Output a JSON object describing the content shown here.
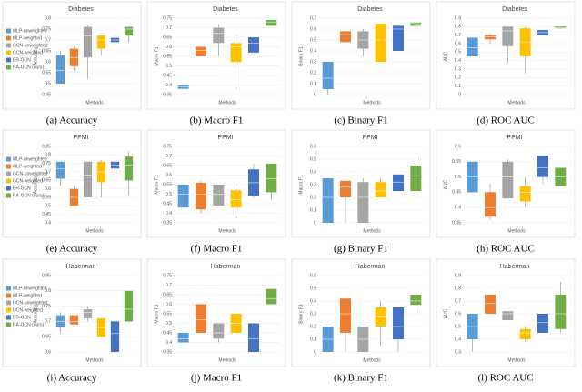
{
  "chart_data": [
    {
      "type": "box",
      "title": "Diabetes",
      "caption": "(a) Accuracy",
      "x_label": "Methods",
      "y_label": "Accuracy",
      "ylim": [
        0.45,
        0.8
      ],
      "yticks": [
        0.45,
        0.5,
        0.55,
        0.6,
        0.65,
        0.7,
        0.75,
        0.8
      ],
      "legend": true,
      "series": [
        {
          "name": "MLP-unweighted",
          "color": "#5b9bd5",
          "values": [
            0.5,
            0.5,
            0.56,
            0.63,
            0.65
          ]
        },
        {
          "name": "MLP-weighted",
          "color": "#ed7d31",
          "values": [
            0.56,
            0.58,
            0.62,
            0.66,
            0.67
          ]
        },
        {
          "name": "GCN-unweighted",
          "color": "#a5a5a5",
          "values": [
            0.52,
            0.62,
            0.72,
            0.76,
            0.77
          ]
        },
        {
          "name": "GCN-weighted",
          "color": "#ffc000",
          "values": [
            0.63,
            0.66,
            0.7,
            0.72,
            0.72
          ]
        },
        {
          "name": "ER-GCN",
          "color": "#4472c4",
          "values": [
            0.68,
            0.69,
            0.7,
            0.71,
            0.72
          ]
        },
        {
          "name": "RA-GCN (ours)",
          "color": "#70ad47",
          "values": [
            0.69,
            0.72,
            0.75,
            0.76,
            0.76
          ]
        }
      ]
    },
    {
      "type": "box",
      "title": "Diabetes",
      "caption": "(b) Macro F1",
      "x_label": "Methods",
      "y_label": "Macro F1",
      "ylim": [
        0.35,
        0.75
      ],
      "yticks": [
        0.35,
        0.4,
        0.45,
        0.5,
        0.55,
        0.6,
        0.65,
        0.7,
        0.75
      ],
      "legend": false,
      "series": [
        {
          "color": "#5b9bd5",
          "values": [
            0.38,
            0.38,
            0.39,
            0.4,
            0.4
          ]
        },
        {
          "color": "#ed7d31",
          "values": [
            0.55,
            0.55,
            0.58,
            0.6,
            0.6
          ]
        },
        {
          "color": "#a5a5a5",
          "values": [
            0.55,
            0.62,
            0.67,
            0.7,
            0.72
          ]
        },
        {
          "color": "#ffc000",
          "values": [
            0.38,
            0.52,
            0.6,
            0.62,
            0.66
          ]
        },
        {
          "color": "#4472c4",
          "values": [
            0.57,
            0.57,
            0.62,
            0.65,
            0.65
          ]
        },
        {
          "color": "#70ad47",
          "values": [
            0.71,
            0.71,
            0.73,
            0.74,
            0.74
          ]
        }
      ]
    },
    {
      "type": "box",
      "title": "Diabetes",
      "caption": "(c) Binary F1",
      "x_label": "Methods",
      "y_label": "Binary F1",
      "ylim": [
        0,
        0.7
      ],
      "yticks": [
        0,
        0.1,
        0.2,
        0.3,
        0.4,
        0.5,
        0.6,
        0.7
      ],
      "legend": false,
      "series": [
        {
          "color": "#5b9bd5",
          "values": [
            0,
            0.05,
            0.15,
            0.3,
            0.3
          ]
        },
        {
          "color": "#ed7d31",
          "values": [
            0.48,
            0.48,
            0.55,
            0.58,
            0.58
          ]
        },
        {
          "color": "#a5a5a5",
          "values": [
            0.35,
            0.42,
            0.5,
            0.58,
            0.6
          ]
        },
        {
          "color": "#ffc000",
          "values": [
            0.3,
            0.3,
            0.5,
            0.65,
            0.65
          ]
        },
        {
          "color": "#4472c4",
          "values": [
            0.4,
            0.4,
            0.6,
            0.63,
            0.63
          ]
        },
        {
          "color": "#70ad47",
          "values": [
            0.63,
            0.63,
            0.65,
            0.66,
            0.66
          ]
        }
      ]
    },
    {
      "type": "box",
      "title": "Diabetes",
      "caption": "(d) ROC AUC",
      "x_label": "Methods",
      "y_label": "AUC",
      "ylim": [
        0,
        0.9
      ],
      "yticks": [
        0,
        0.1,
        0.2,
        0.3,
        0.4,
        0.5,
        0.6,
        0.7,
        0.8,
        0.9
      ],
      "legend": false,
      "series": [
        {
          "color": "#5b9bd5",
          "values": [
            0.45,
            0.45,
            0.55,
            0.67,
            0.67
          ]
        },
        {
          "color": "#ed7d31",
          "values": [
            0.6,
            0.65,
            0.68,
            0.7,
            0.72
          ]
        },
        {
          "color": "#a5a5a5",
          "values": [
            0.37,
            0.57,
            0.75,
            0.8,
            0.8
          ]
        },
        {
          "color": "#ffc000",
          "values": [
            0.25,
            0.45,
            0.62,
            0.78,
            0.8
          ]
        },
        {
          "color": "#4472c4",
          "values": [
            0.7,
            0.7,
            0.73,
            0.76,
            0.76
          ]
        },
        {
          "color": "#70ad47",
          "values": [
            0.78,
            0.78,
            0.79,
            0.8,
            0.8
          ]
        }
      ]
    },
    {
      "type": "box",
      "title": "PPMI",
      "caption": "(e) Accuracy",
      "x_label": "Methods",
      "y_label": "Accuracy",
      "ylim": [
        0.4,
        0.85
      ],
      "yticks": [
        0.4,
        0.45,
        0.5,
        0.55,
        0.6,
        0.65,
        0.7,
        0.75,
        0.8,
        0.85
      ],
      "legend": true,
      "series": [
        {
          "name": "MLP-unweighted",
          "color": "#5b9bd5",
          "values": [
            0.62,
            0.66,
            0.72,
            0.76,
            0.76
          ]
        },
        {
          "name": "MLP-weighted",
          "color": "#ed7d31",
          "values": [
            0.5,
            0.5,
            0.55,
            0.6,
            0.62
          ]
        },
        {
          "name": "GCN-unweighted",
          "color": "#a5a5a5",
          "values": [
            0.55,
            0.55,
            0.68,
            0.76,
            0.76
          ]
        },
        {
          "name": "GCN-weighted",
          "color": "#ffc000",
          "values": [
            0.55,
            0.64,
            0.7,
            0.76,
            0.77
          ]
        },
        {
          "name": "ER-GCN",
          "color": "#4472c4",
          "values": [
            0.71,
            0.72,
            0.74,
            0.76,
            0.77
          ]
        },
        {
          "name": "RA-GCN (ours)",
          "color": "#70ad47",
          "values": [
            0.56,
            0.65,
            0.74,
            0.79,
            0.82
          ]
        }
      ]
    },
    {
      "type": "box",
      "title": "PPMI",
      "caption": "(f) Macro F1",
      "x_label": "Methods",
      "y_label": "Macro F1",
      "ylim": [
        0.35,
        0.75
      ],
      "yticks": [
        0.35,
        0.4,
        0.45,
        0.5,
        0.55,
        0.6,
        0.65,
        0.7,
        0.75
      ],
      "legend": false,
      "series": [
        {
          "color": "#5b9bd5",
          "values": [
            0.43,
            0.43,
            0.5,
            0.55,
            0.55
          ]
        },
        {
          "color": "#ed7d31",
          "values": [
            0.4,
            0.42,
            0.5,
            0.56,
            0.57
          ]
        },
        {
          "color": "#a5a5a5",
          "values": [
            0.44,
            0.44,
            0.5,
            0.55,
            0.55
          ]
        },
        {
          "color": "#ffc000",
          "values": [
            0.4,
            0.43,
            0.47,
            0.52,
            0.56
          ]
        },
        {
          "color": "#4472c4",
          "values": [
            0.48,
            0.49,
            0.56,
            0.63,
            0.66
          ]
        },
        {
          "color": "#70ad47",
          "values": [
            0.47,
            0.51,
            0.58,
            0.66,
            0.66
          ]
        }
      ]
    },
    {
      "type": "box",
      "title": "PPMI",
      "caption": "(g) Binary F1",
      "x_label": "Methods",
      "y_label": "Macro F1",
      "ylim": [
        0,
        0.6
      ],
      "yticks": [
        0,
        0.1,
        0.2,
        0.3,
        0.4,
        0.5,
        0.6
      ],
      "legend": false,
      "series": [
        {
          "color": "#5b9bd5",
          "values": [
            0,
            0,
            0.2,
            0.35,
            0.35
          ]
        },
        {
          "color": "#ed7d31",
          "values": [
            0,
            0.2,
            0.28,
            0.33,
            0.33
          ]
        },
        {
          "color": "#a5a5a5",
          "values": [
            0,
            0,
            0.2,
            0.32,
            0.35
          ]
        },
        {
          "color": "#ffc000",
          "values": [
            0.2,
            0.2,
            0.25,
            0.32,
            0.35
          ]
        },
        {
          "color": "#4472c4",
          "values": [
            0.25,
            0.25,
            0.32,
            0.38,
            0.38
          ]
        },
        {
          "color": "#70ad47",
          "values": [
            0.25,
            0.25,
            0.37,
            0.45,
            0.52
          ]
        }
      ]
    },
    {
      "type": "box",
      "title": "PPMI",
      "caption": "(h) ROC AUC",
      "x_label": "Methods",
      "y_label": "AUC",
      "ylim": [
        0.35,
        0.6
      ],
      "yticks": [
        0.35,
        0.4,
        0.45,
        0.5,
        0.55,
        0.6
      ],
      "legend": false,
      "series": [
        {
          "color": "#5b9bd5",
          "values": [
            0.45,
            0.45,
            0.5,
            0.55,
            0.55
          ]
        },
        {
          "color": "#ed7d31",
          "values": [
            0.36,
            0.37,
            0.4,
            0.45,
            0.48
          ]
        },
        {
          "color": "#a5a5a5",
          "values": [
            0.43,
            0.43,
            0.5,
            0.55,
            0.56
          ]
        },
        {
          "color": "#ffc000",
          "values": [
            0.4,
            0.42,
            0.45,
            0.47,
            0.5
          ]
        },
        {
          "color": "#4472c4",
          "values": [
            0.48,
            0.5,
            0.53,
            0.57,
            0.57
          ]
        },
        {
          "color": "#70ad47",
          "values": [
            0.47,
            0.47,
            0.5,
            0.53,
            0.53
          ]
        }
      ]
    },
    {
      "type": "box",
      "title": "Haberman",
      "caption": "(i) Accuracy",
      "x_label": "Methods",
      "y_label": "Accuracy",
      "ylim": [
        0.6,
        0.85
      ],
      "yticks": [
        0.6,
        0.65,
        0.7,
        0.75,
        0.8,
        0.85
      ],
      "legend": true,
      "series": [
        {
          "name": "MLP-unweighted",
          "color": "#5b9bd5",
          "values": [
            0.66,
            0.68,
            0.7,
            0.72,
            0.73
          ]
        },
        {
          "name": "MLP-weighted",
          "color": "#ed7d31",
          "values": [
            0.69,
            0.69,
            0.7,
            0.72,
            0.72
          ]
        },
        {
          "name": "GCN-unweighted",
          "color": "#a5a5a5",
          "values": [
            0.7,
            0.71,
            0.73,
            0.74,
            0.75
          ]
        },
        {
          "name": "GCN-weighted",
          "color": "#ffc000",
          "values": [
            0.65,
            0.65,
            0.68,
            0.71,
            0.71
          ]
        },
        {
          "name": "ER-GCN",
          "color": "#4472c4",
          "values": [
            0.6,
            0.6,
            0.66,
            0.7,
            0.7
          ]
        },
        {
          "name": "RA-GCN (ours)",
          "color": "#70ad47",
          "values": [
            0.7,
            0.7,
            0.74,
            0.8,
            0.8
          ]
        }
      ]
    },
    {
      "type": "box",
      "title": "Haberman",
      "caption": "(j) Macro F1",
      "x_label": "Methods",
      "y_label": "Macro F1",
      "ylim": [
        0.35,
        0.75
      ],
      "yticks": [
        0.35,
        0.4,
        0.45,
        0.5,
        0.55,
        0.6,
        0.65,
        0.7,
        0.75
      ],
      "legend": false,
      "series": [
        {
          "color": "#5b9bd5",
          "values": [
            0.4,
            0.4,
            0.42,
            0.45,
            0.45
          ]
        },
        {
          "color": "#ed7d31",
          "values": [
            0.45,
            0.45,
            0.52,
            0.6,
            0.6
          ]
        },
        {
          "color": "#a5a5a5",
          "values": [
            0.4,
            0.42,
            0.45,
            0.5,
            0.5
          ]
        },
        {
          "color": "#ffc000",
          "values": [
            0.45,
            0.45,
            0.5,
            0.55,
            0.55
          ]
        },
        {
          "color": "#4472c4",
          "values": [
            0.35,
            0.35,
            0.42,
            0.5,
            0.5
          ]
        },
        {
          "color": "#70ad47",
          "values": [
            0.6,
            0.6,
            0.63,
            0.68,
            0.68
          ]
        }
      ]
    },
    {
      "type": "box",
      "title": "Haberman",
      "caption": "(k) Binary F1",
      "x_label": "Methods",
      "y_label": "Binary F1",
      "ylim": [
        0,
        0.6
      ],
      "yticks": [
        0,
        0.1,
        0.2,
        0.3,
        0.4,
        0.5,
        0.6
      ],
      "legend": false,
      "series": [
        {
          "color": "#5b9bd5",
          "values": [
            0,
            0,
            0.1,
            0.2,
            0.2
          ]
        },
        {
          "color": "#ed7d31",
          "values": [
            0,
            0.15,
            0.3,
            0.42,
            0.42
          ]
        },
        {
          "color": "#a5a5a5",
          "values": [
            0,
            0,
            0.1,
            0.2,
            0.2
          ]
        },
        {
          "color": "#ffc000",
          "values": [
            0.05,
            0.2,
            0.28,
            0.35,
            0.4
          ]
        },
        {
          "color": "#4472c4",
          "values": [
            0,
            0.1,
            0.2,
            0.35,
            0.35
          ]
        },
        {
          "color": "#70ad47",
          "values": [
            0.33,
            0.37,
            0.4,
            0.45,
            0.47
          ]
        }
      ]
    },
    {
      "type": "box",
      "title": "Haberman",
      "caption": "(l) ROC AUC",
      "x_label": "Methods",
      "y_label": "AUC",
      "ylim": [
        0.3,
        0.9
      ],
      "yticks": [
        0.3,
        0.4,
        0.5,
        0.6,
        0.7,
        0.8,
        0.9
      ],
      "legend": false,
      "series": [
        {
          "color": "#5b9bd5",
          "values": [
            0.3,
            0.4,
            0.5,
            0.6,
            0.6
          ]
        },
        {
          "color": "#ed7d31",
          "values": [
            0.6,
            0.6,
            0.68,
            0.75,
            0.75
          ]
        },
        {
          "color": "#a5a5a5",
          "values": [
            0.55,
            0.55,
            0.6,
            0.62,
            0.62
          ]
        },
        {
          "color": "#ffc000",
          "values": [
            0.38,
            0.4,
            0.45,
            0.48,
            0.5
          ]
        },
        {
          "color": "#4472c4",
          "values": [
            0.45,
            0.45,
            0.53,
            0.6,
            0.6
          ]
        },
        {
          "color": "#70ad47",
          "values": [
            0.45,
            0.48,
            0.6,
            0.75,
            0.85
          ]
        }
      ]
    }
  ]
}
